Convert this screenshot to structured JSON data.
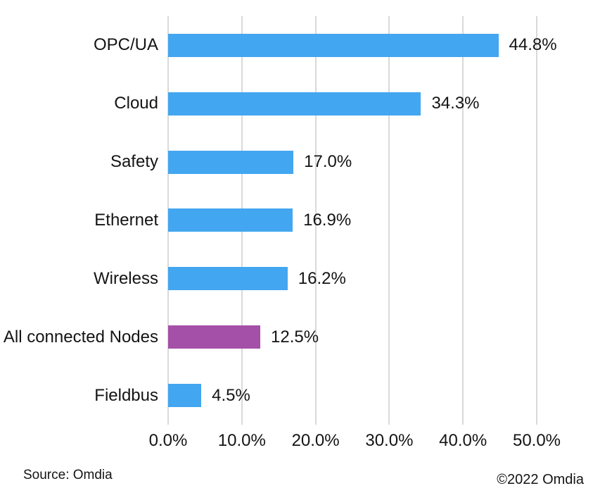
{
  "chart_data": {
    "type": "bar",
    "orientation": "horizontal",
    "title": "",
    "categories": [
      "OPC/UA",
      "Cloud",
      "Safety",
      "Ethernet",
      "Wireless",
      "All connected Nodes",
      "Fieldbus"
    ],
    "values": [
      44.8,
      34.3,
      17.0,
      16.9,
      16.2,
      12.5,
      4.5
    ],
    "value_labels": [
      "44.8%",
      "34.3%",
      "17.0%",
      "16.9%",
      "16.2%",
      "12.5%",
      "4.5%"
    ],
    "highlighted_category": "All connected Nodes",
    "bar_color": "#43a6f0",
    "highlight_color": "#a450a8",
    "gridline_color": "#d9d9d9",
    "xlim": [
      0,
      50
    ],
    "x_ticks": [
      0,
      10,
      20,
      30,
      40,
      50
    ],
    "x_tick_labels": [
      "0.0%",
      "10.0%",
      "20.0%",
      "30.0%",
      "40.0%",
      "50.0%"
    ],
    "grid": "vertical-only",
    "legend": "none",
    "xlabel": "",
    "ylabel": ""
  },
  "footer": {
    "source": "Source: Omdia",
    "copyright": "©2022 Omdia"
  }
}
